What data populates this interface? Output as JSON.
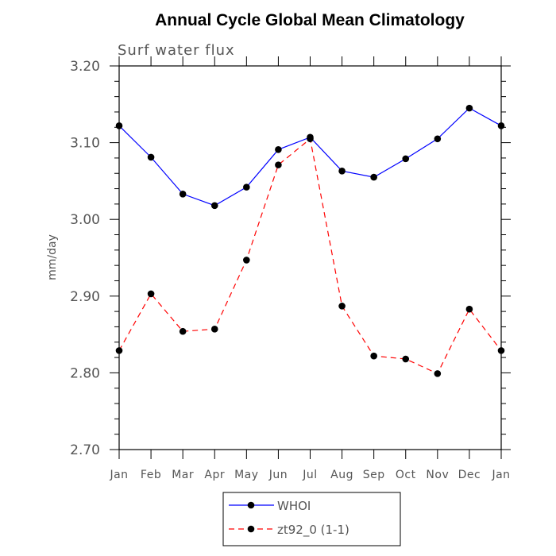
{
  "chart_data": {
    "type": "line",
    "title": "Annual Cycle Global Mean Climatology",
    "subtitle": "Surf water flux",
    "xlabel": "",
    "ylabel": "mm/day",
    "ylim": [
      2.7,
      3.2
    ],
    "yticks": [
      "2.70",
      "2.80",
      "2.90",
      "3.00",
      "3.10",
      "3.20"
    ],
    "categories": [
      "Jan",
      "Feb",
      "Mar",
      "Apr",
      "May",
      "Jun",
      "Jul",
      "Aug",
      "Sep",
      "Oct",
      "Nov",
      "Dec",
      "Jan"
    ],
    "legend_position": "bottom-center",
    "grid": false,
    "series": [
      {
        "name": "WHOI",
        "color": "#0000ff",
        "dash": "solid",
        "values": [
          3.122,
          3.081,
          3.033,
          3.018,
          3.042,
          3.091,
          3.107,
          3.063,
          3.055,
          3.079,
          3.105,
          3.145,
          3.122
        ]
      },
      {
        "name": "zt92_0 (1-1)",
        "color": "#ff0000",
        "dash": "dashed",
        "values": [
          2.829,
          2.903,
          2.854,
          2.857,
          2.947,
          3.071,
          3.105,
          2.887,
          2.822,
          2.818,
          2.799,
          2.883,
          2.829
        ]
      }
    ]
  }
}
